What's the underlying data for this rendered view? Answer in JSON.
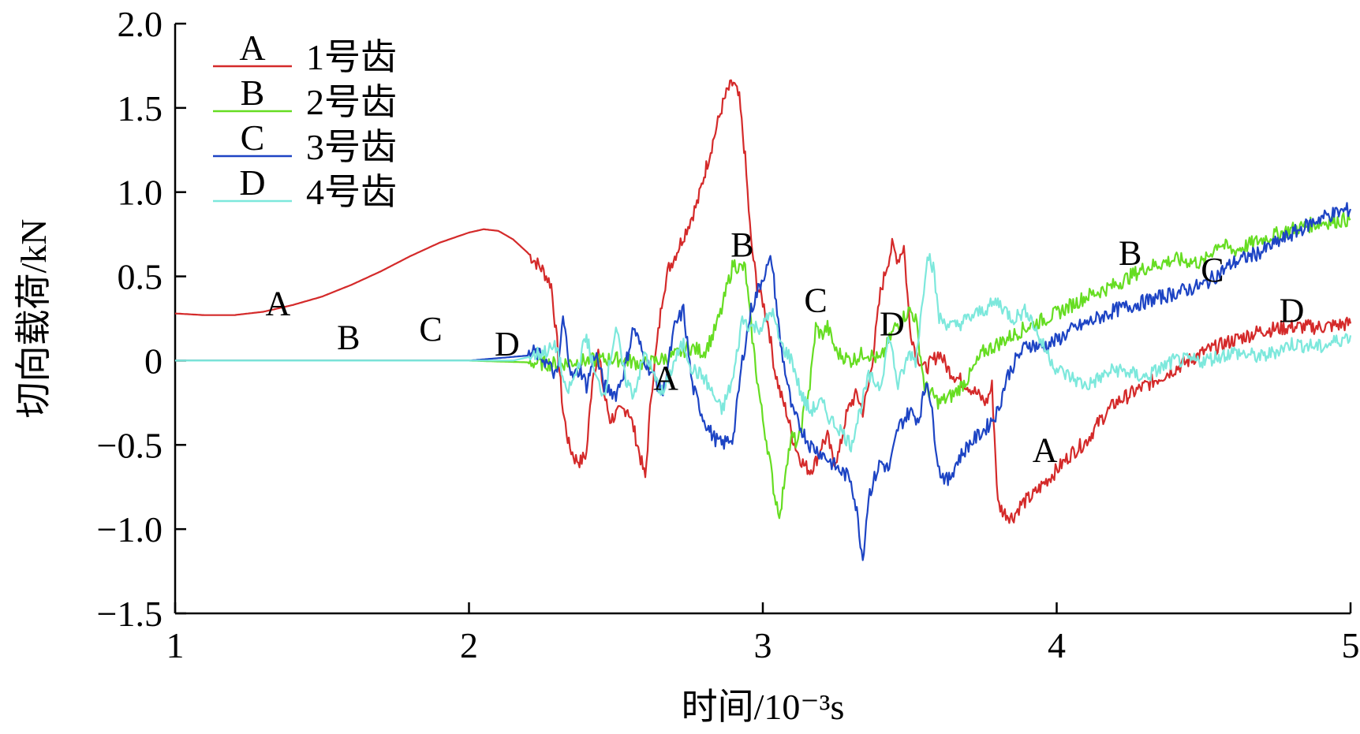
{
  "chart_data": {
    "type": "line",
    "xlabel": "时间/10⁻³s",
    "ylabel": "切向载荷/kN",
    "xlim": [
      1,
      5
    ],
    "ylim": [
      -1.5,
      2.0
    ],
    "xticks": [
      1,
      2,
      3,
      4,
      5
    ],
    "xtick_labels": [
      "1",
      "2",
      "3",
      "4",
      "5"
    ],
    "yticks": [
      -1.5,
      -1.0,
      -0.5,
      0,
      0.5,
      1.0,
      1.5,
      2.0
    ],
    "ytick_labels": [
      "−1.5",
      "−1.0",
      "−0.5",
      "0",
      "0.5",
      "1.0",
      "1.5",
      "2.0"
    ],
    "grid": false,
    "legend_position": "top-left",
    "series": [
      {
        "key": "A",
        "name": "1号齿",
        "color": "#d42a2a",
        "x": [
          1.0,
          1.1,
          1.2,
          1.3,
          1.4,
          1.5,
          1.6,
          1.7,
          1.8,
          1.9,
          2.0,
          2.05,
          2.1,
          2.15,
          2.2,
          2.25,
          2.28,
          2.3,
          2.32,
          2.34,
          2.36,
          2.38,
          2.4,
          2.42,
          2.44,
          2.46,
          2.48,
          2.5,
          2.52,
          2.54,
          2.56,
          2.58,
          2.6,
          2.62,
          2.64,
          2.66,
          2.68,
          2.7,
          2.72,
          2.75,
          2.78,
          2.8,
          2.83,
          2.86,
          2.88,
          2.9,
          2.92,
          2.94,
          2.96,
          2.98,
          3.0,
          3.02,
          3.04,
          3.06,
          3.08,
          3.1,
          3.12,
          3.14,
          3.16,
          3.18,
          3.2,
          3.22,
          3.24,
          3.26,
          3.28,
          3.3,
          3.32,
          3.34,
          3.36,
          3.38,
          3.4,
          3.42,
          3.44,
          3.46,
          3.48,
          3.5,
          3.52,
          3.55,
          3.58,
          3.6,
          3.63,
          3.66,
          3.7,
          3.73,
          3.76,
          3.78,
          3.8,
          3.82,
          3.85,
          3.88,
          3.92,
          3.96,
          4.0,
          4.05,
          4.1,
          4.15,
          4.2,
          4.3,
          4.4,
          4.5,
          4.6,
          4.7,
          4.8,
          4.9,
          5.0
        ],
        "y": [
          0.28,
          0.27,
          0.27,
          0.29,
          0.33,
          0.38,
          0.45,
          0.53,
          0.62,
          0.7,
          0.76,
          0.78,
          0.77,
          0.72,
          0.64,
          0.54,
          0.45,
          0.1,
          -0.3,
          -0.5,
          -0.58,
          -0.6,
          -0.55,
          -0.1,
          0.05,
          -0.2,
          -0.35,
          -0.32,
          -0.3,
          -0.28,
          -0.4,
          -0.55,
          -0.7,
          -0.2,
          0.1,
          0.4,
          0.55,
          0.62,
          0.7,
          0.82,
          0.95,
          1.1,
          1.3,
          1.5,
          1.6,
          1.65,
          1.55,
          1.2,
          0.7,
          0.45,
          0.35,
          0.2,
          -0.05,
          -0.2,
          -0.3,
          -0.45,
          -0.55,
          -0.62,
          -0.65,
          -0.6,
          -0.5,
          -0.45,
          -0.6,
          -0.55,
          -0.35,
          -0.25,
          -0.2,
          -0.3,
          -0.15,
          0.1,
          0.4,
          0.55,
          0.68,
          0.6,
          0.68,
          0.2,
          0.05,
          -0.05,
          0.0,
          0.05,
          -0.05,
          -0.1,
          -0.15,
          -0.2,
          -0.25,
          -0.15,
          -0.85,
          -0.9,
          -0.93,
          -0.85,
          -0.8,
          -0.72,
          -0.65,
          -0.55,
          -0.48,
          -0.35,
          -0.25,
          -0.15,
          -0.05,
          0.05,
          0.12,
          0.18,
          0.2,
          0.2,
          0.22
        ]
      },
      {
        "key": "B",
        "name": "2号齿",
        "color": "#66dd22",
        "x": [
          1.0,
          1.5,
          2.0,
          2.2,
          2.3,
          2.4,
          2.5,
          2.6,
          2.7,
          2.75,
          2.8,
          2.83,
          2.86,
          2.88,
          2.9,
          2.92,
          2.94,
          2.96,
          2.98,
          3.0,
          3.02,
          3.04,
          3.06,
          3.08,
          3.1,
          3.12,
          3.14,
          3.16,
          3.18,
          3.2,
          3.22,
          3.25,
          3.3,
          3.35,
          3.4,
          3.45,
          3.5,
          3.52,
          3.55,
          3.6,
          3.65,
          3.7,
          3.75,
          3.8,
          3.9,
          4.0,
          4.1,
          4.2,
          4.3,
          4.4,
          4.5,
          4.55,
          4.6,
          4.7,
          4.8,
          4.9,
          5.0
        ],
        "y": [
          0.0,
          0.0,
          0.0,
          -0.01,
          -0.02,
          0.0,
          0.01,
          -0.02,
          0.03,
          0.08,
          0.05,
          0.15,
          0.3,
          0.45,
          0.58,
          0.55,
          0.55,
          0.2,
          -0.1,
          -0.35,
          -0.55,
          -0.8,
          -0.92,
          -0.6,
          -0.45,
          -0.5,
          -0.3,
          -0.15,
          0.2,
          0.15,
          0.2,
          0.05,
          0.0,
          0.05,
          0.0,
          0.2,
          0.3,
          0.25,
          -0.15,
          -0.25,
          -0.2,
          -0.1,
          0.05,
          0.1,
          0.2,
          0.28,
          0.38,
          0.45,
          0.55,
          0.6,
          0.58,
          0.7,
          0.65,
          0.72,
          0.78,
          0.82,
          0.84
        ]
      },
      {
        "key": "C",
        "name": "3号齿",
        "color": "#1d44c4",
        "x": [
          1.0,
          1.5,
          2.0,
          2.2,
          2.22,
          2.25,
          2.28,
          2.3,
          2.32,
          2.35,
          2.38,
          2.4,
          2.43,
          2.46,
          2.5,
          2.53,
          2.56,
          2.6,
          2.63,
          2.66,
          2.7,
          2.73,
          2.76,
          2.8,
          2.83,
          2.86,
          2.9,
          2.93,
          2.96,
          3.0,
          3.03,
          3.06,
          3.1,
          3.13,
          3.16,
          3.2,
          3.23,
          3.26,
          3.3,
          3.32,
          3.34,
          3.36,
          3.38,
          3.4,
          3.43,
          3.46,
          3.5,
          3.53,
          3.56,
          3.6,
          3.63,
          3.66,
          3.7,
          3.73,
          3.76,
          3.8,
          3.83,
          3.86,
          3.9,
          3.95,
          4.0,
          4.05,
          4.1,
          4.2,
          4.3,
          4.4,
          4.5,
          4.6,
          4.7,
          4.8,
          4.9,
          5.0
        ],
        "y": [
          0.0,
          0.0,
          0.0,
          0.03,
          0.05,
          0.02,
          -0.05,
          -0.1,
          0.25,
          -0.1,
          -0.05,
          -0.15,
          0.05,
          -0.15,
          -0.2,
          -0.05,
          0.2,
          0.0,
          -0.1,
          -0.2,
          0.2,
          0.3,
          -0.15,
          -0.35,
          -0.45,
          -0.5,
          -0.45,
          0.0,
          0.3,
          0.5,
          0.6,
          0.1,
          -0.3,
          -0.4,
          -0.5,
          -0.55,
          -0.6,
          -0.65,
          -0.7,
          -0.9,
          -1.18,
          -0.8,
          -0.7,
          -0.6,
          -0.65,
          -0.4,
          -0.3,
          -0.35,
          -0.1,
          -0.65,
          -0.72,
          -0.6,
          -0.5,
          -0.45,
          -0.4,
          -0.3,
          -0.1,
          0.0,
          0.1,
          0.08,
          0.12,
          0.18,
          0.22,
          0.3,
          0.35,
          0.4,
          0.45,
          0.58,
          0.65,
          0.75,
          0.85,
          0.9
        ]
      },
      {
        "key": "D",
        "name": "4号齿",
        "color": "#7de8dc",
        "x": [
          1.0,
          1.5,
          2.0,
          2.15,
          2.2,
          2.25,
          2.3,
          2.33,
          2.36,
          2.4,
          2.43,
          2.46,
          2.5,
          2.53,
          2.56,
          2.6,
          2.63,
          2.66,
          2.7,
          2.73,
          2.76,
          2.8,
          2.83,
          2.86,
          2.9,
          2.93,
          2.96,
          3.0,
          3.03,
          3.06,
          3.1,
          3.13,
          3.16,
          3.2,
          3.23,
          3.26,
          3.3,
          3.33,
          3.36,
          3.4,
          3.43,
          3.46,
          3.5,
          3.52,
          3.54,
          3.56,
          3.58,
          3.6,
          3.65,
          3.7,
          3.75,
          3.8,
          3.85,
          3.9,
          3.95,
          4.0,
          4.05,
          4.1,
          4.15,
          4.2,
          4.3,
          4.4,
          4.5,
          4.6,
          4.7,
          4.8,
          4.9,
          5.0
        ],
        "y": [
          0.0,
          0.0,
          0.0,
          0.0,
          0.02,
          0.05,
          0.08,
          -0.2,
          -0.1,
          0.15,
          -0.1,
          -0.2,
          0.2,
          -0.1,
          -0.2,
          0.05,
          -0.1,
          -0.2,
          0.0,
          0.1,
          -0.05,
          -0.1,
          -0.2,
          -0.3,
          -0.1,
          0.25,
          0.2,
          0.2,
          0.3,
          0.1,
          0.0,
          -0.2,
          -0.3,
          -0.25,
          -0.35,
          -0.4,
          -0.5,
          -0.3,
          -0.1,
          -0.15,
          0.15,
          -0.15,
          0.05,
          0.0,
          0.3,
          0.65,
          0.55,
          0.25,
          0.2,
          0.25,
          0.3,
          0.35,
          0.25,
          0.3,
          0.1,
          -0.05,
          -0.1,
          -0.15,
          -0.1,
          -0.05,
          -0.1,
          0.0,
          0.0,
          0.05,
          0.02,
          0.1,
          0.08,
          0.15
        ]
      }
    ],
    "legend": [
      {
        "key": "A",
        "label": "1号齿"
      },
      {
        "key": "B",
        "label": "2号齿"
      },
      {
        "key": "C",
        "label": "3号齿"
      },
      {
        "key": "D",
        "label": "4号齿"
      }
    ],
    "annotations": [
      {
        "text": "A",
        "x": 1.35,
        "y": 0.27
      },
      {
        "text": "B",
        "x": 1.59,
        "y": 0.07
      },
      {
        "text": "C",
        "x": 1.87,
        "y": 0.12
      },
      {
        "text": "D",
        "x": 2.13,
        "y": 0.03
      },
      {
        "text": "A",
        "x": 2.67,
        "y": -0.17
      },
      {
        "text": "B",
        "x": 2.93,
        "y": 0.62
      },
      {
        "text": "C",
        "x": 3.18,
        "y": 0.29
      },
      {
        "text": "D",
        "x": 3.44,
        "y": 0.15
      },
      {
        "text": "A",
        "x": 3.96,
        "y": -0.6
      },
      {
        "text": "B",
        "x": 4.25,
        "y": 0.57
      },
      {
        "text": "C",
        "x": 4.53,
        "y": 0.47
      },
      {
        "text": "D",
        "x": 4.8,
        "y": 0.23
      }
    ]
  }
}
